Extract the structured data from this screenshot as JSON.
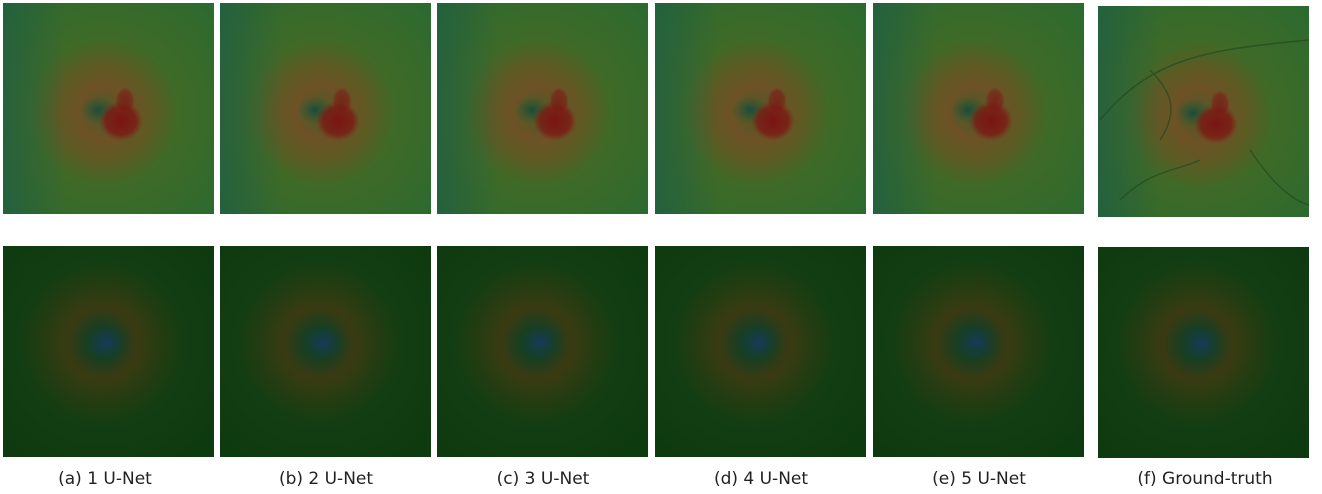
{
  "captions": [
    "(a) 1 U-Net",
    "(b) 2 U-Net",
    "(c) 3 U-Net",
    "(d) 4 U-Net",
    "(e) 5 U-Net",
    "(f) Ground-truth"
  ]
}
